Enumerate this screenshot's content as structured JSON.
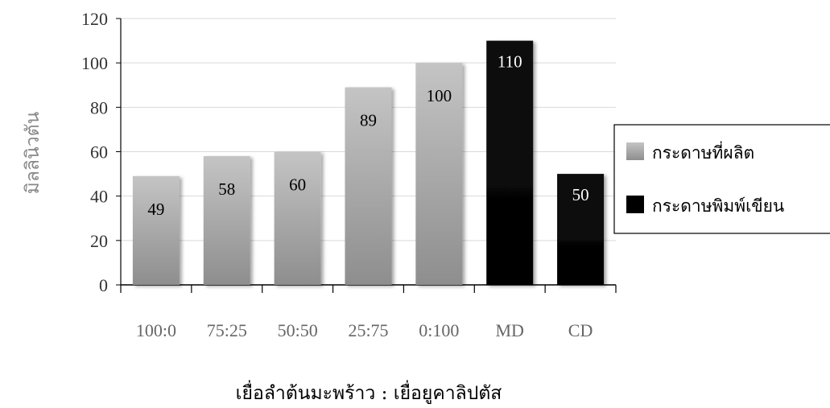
{
  "chart_data": {
    "type": "bar",
    "categories": [
      "100:0",
      "75:25",
      "50:50",
      "25:75",
      "0:100",
      "MD",
      "CD"
    ],
    "values": [
      49,
      58,
      60,
      89,
      100,
      110,
      50
    ],
    "series": [
      {
        "name": "กระดาษที่ผลิต",
        "color": "#b3b3b3"
      },
      {
        "name": "กระดาษพิมพ์เขียน",
        "color": "#0d0d0d"
      }
    ],
    "bar_series": [
      0,
      0,
      0,
      0,
      0,
      1,
      1
    ],
    "data_labels": [
      "49",
      "58",
      "60",
      "89",
      "100",
      "110",
      "50"
    ],
    "xlabel": "เยื่อลำต้นมะพร้าว : เยื่อยูคาลิปตัส",
    "ylabel": "มิลลินิวตัน",
    "ylim": [
      0,
      120
    ],
    "yticks": [
      0,
      20,
      40,
      60,
      80,
      100,
      120
    ],
    "grid": true,
    "legend_position": "right"
  }
}
